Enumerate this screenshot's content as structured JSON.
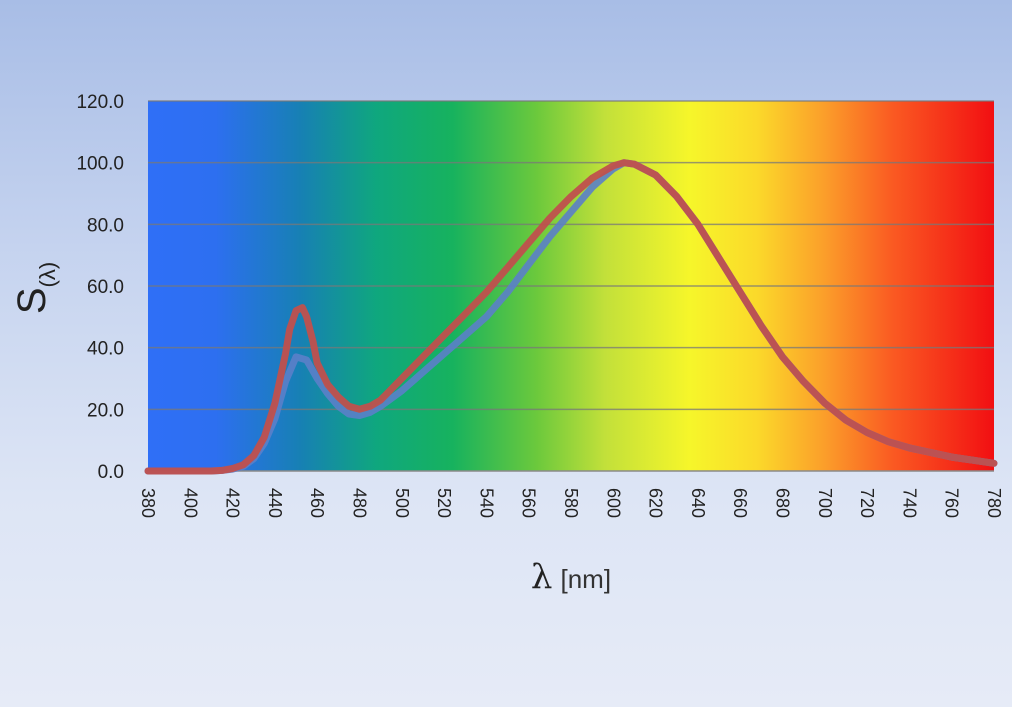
{
  "chart_data": {
    "type": "line",
    "xlabel_symbol": "λ",
    "xlabel_unit": "[nm]",
    "ylabel_main": "S",
    "ylabel_sub": "(λ)",
    "xlim": [
      380,
      780
    ],
    "ylim": [
      0,
      120
    ],
    "x_ticks": [
      "380",
      "400",
      "420",
      "440",
      "460",
      "480",
      "500",
      "520",
      "540",
      "560",
      "580",
      "600",
      "620",
      "640",
      "660",
      "680",
      "700",
      "720",
      "740",
      "760",
      "780"
    ],
    "y_ticks": [
      "0.0",
      "20.0",
      "40.0",
      "60.0",
      "80.0",
      "100.0",
      "120.0"
    ],
    "grid": true,
    "background": "visible spectrum gradient",
    "series": [
      {
        "color": "#5b7fc9",
        "x": [
          380,
          410,
          415,
          420,
          425,
          430,
          435,
          440,
          445,
          450,
          455,
          460,
          465,
          470,
          475,
          480,
          485,
          490,
          500,
          510,
          520,
          530,
          540,
          550,
          560,
          570,
          580,
          590,
          600,
          605,
          610,
          620,
          630,
          640,
          650,
          660,
          670,
          680,
          690,
          700,
          710,
          720,
          730,
          740,
          750,
          760,
          770,
          780
        ],
        "y": [
          0,
          0,
          0.2,
          0.6,
          1.5,
          4,
          9,
          17,
          29,
          37,
          36,
          30,
          25,
          21,
          18.5,
          18,
          19,
          21,
          26,
          32,
          38,
          44,
          50,
          58,
          67,
          76,
          84,
          92,
          98,
          100,
          99.5,
          96,
          89,
          80,
          69,
          58,
          47,
          37,
          29,
          22,
          16.5,
          12.5,
          9.5,
          7.5,
          6,
          4.5,
          3.5,
          2.5
        ]
      },
      {
        "color": "#c0504d",
        "x": [
          380,
          410,
          415,
          420,
          425,
          430,
          435,
          440,
          445,
          447,
          450,
          453,
          455,
          458,
          460,
          465,
          470,
          475,
          480,
          485,
          490,
          500,
          510,
          520,
          530,
          540,
          550,
          560,
          570,
          580,
          590,
          600,
          605,
          610,
          620,
          630,
          640,
          650,
          660,
          670,
          680,
          690,
          700,
          710,
          720,
          730,
          740,
          750,
          760,
          770,
          780
        ],
        "y": [
          0,
          0,
          0.2,
          0.8,
          2,
          5,
          11,
          22,
          38,
          46,
          52,
          53,
          50,
          42,
          35,
          28,
          24,
          21,
          20,
          21,
          23,
          30,
          37,
          44,
          51,
          58,
          66,
          74,
          82,
          89,
          95,
          99,
          100,
          99.5,
          96,
          89,
          80,
          69,
          58,
          47,
          37,
          29,
          22,
          16.5,
          12.5,
          9.5,
          7.5,
          6,
          4.5,
          3.5,
          2.5
        ]
      }
    ]
  }
}
